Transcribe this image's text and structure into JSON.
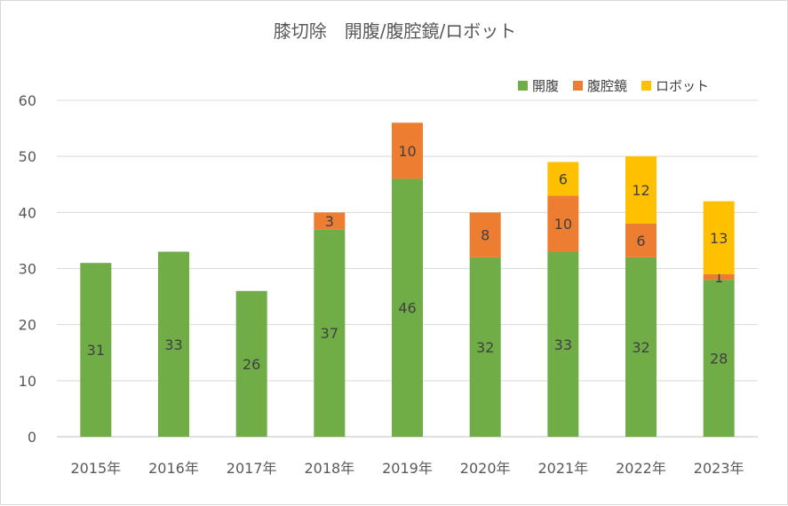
{
  "chart_data": {
    "type": "bar",
    "stacked": true,
    "title": "膝切除　開腹/腹腔鏡/ロボット",
    "xlabel": "",
    "ylabel": "",
    "ylim": [
      0,
      60
    ],
    "yticks": [
      0,
      10,
      20,
      30,
      40,
      50,
      60
    ],
    "grid": true,
    "legend_position": "top-right",
    "categories": [
      "2015年",
      "2016年",
      "2017年",
      "2018年",
      "2019年",
      "2020年",
      "2021年",
      "2022年",
      "2023年"
    ],
    "series": [
      {
        "name": "開腹",
        "color": "#70ad47",
        "values": [
          31,
          33,
          26,
          37,
          46,
          32,
          33,
          32,
          28
        ]
      },
      {
        "name": "腹腔鏡",
        "color": "#ed7d31",
        "values": [
          0,
          0,
          0,
          3,
          10,
          8,
          10,
          6,
          1
        ]
      },
      {
        "name": "ロボット",
        "color": "#ffc000",
        "values": [
          0,
          0,
          0,
          0,
          0,
          0,
          6,
          12,
          13
        ]
      }
    ]
  }
}
